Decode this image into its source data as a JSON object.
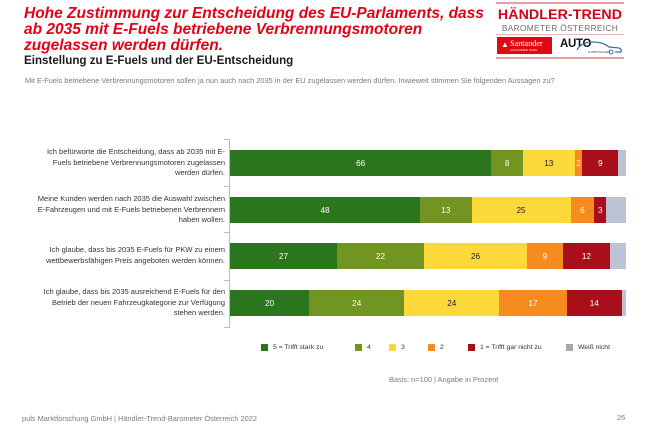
{
  "header": {
    "title": "Hohe Zustimmung zur Entscheidung des EU-Parlaments, dass ab 2035 mit E-Fuels betriebene Verbrennungsmotoren zugelassen werden dürfen.",
    "subtitle": "Einstellung zu E-Fuels und der EU-Entscheidung",
    "intro": "Mit E-Fuels betriebene Verbrennungsmotoren sollen ja nun auch nach 2035 in der EU zugelassen werden dürfen. Inwieweit stimmen Sie folgenden Aussagen zu?"
  },
  "logo": {
    "brand": "HÄNDLER-TREND",
    "sub": "BAROMETER ÖSTERREICH",
    "partner1": "Santander",
    "partner1_sub": "CONSUMER BANK",
    "partner2": "AUTO",
    "partner2_sub": "& WIRTSCHAFT"
  },
  "chart_data": {
    "type": "bar",
    "orientation": "horizontal",
    "stacked": true,
    "title": "Einstellung zu E-Fuels und der EU-Entscheidung",
    "xlabel": "",
    "ylabel": "",
    "xlim": [
      0,
      100
    ],
    "unit": "Prozent",
    "legend_position": "bottom",
    "categories": [
      "Ich befürworte die Entscheidung, dass ab 2035 mit E-Fuels betriebene Verbrennungsmotoren zugelassen werden dürfen.",
      "Meine Kunden werden nach 2035 die Auswahl zwischen E-Fahrzeugen und mit E-Fuels betriebenen Verbrennern haben wollen.",
      "Ich glaube, dass bis 2035 E-Fuels für PKW zu einem wettbewerbsfähigen Preis angeboten werden können.",
      "Ich glaube, dass bis 2035 ausreichend E-Fuels für den Betrieb der neuen Fahrzeugkategorie zur Verfügung stehen werden."
    ],
    "series": [
      {
        "name": "5 = Trifft stark zu",
        "color": "#2b761d",
        "legend_color": "#2b761d",
        "label_dark": false,
        "values": [
          66,
          48,
          27,
          20
        ],
        "labels_shown": true
      },
      {
        "name": "4",
        "color": "#729420",
        "legend_color": "#729420",
        "label_dark": false,
        "values": [
          8,
          13,
          22,
          24
        ],
        "labels_shown": true
      },
      {
        "name": "3",
        "color": "#fdd83a",
        "legend_color": "#fdd83a",
        "label_dark": true,
        "values": [
          13,
          25,
          26,
          24
        ],
        "labels_shown": true
      },
      {
        "name": "2",
        "color": "#f68c1f",
        "legend_color": "#f68c1f",
        "label_dark": false,
        "values": [
          2,
          6,
          9,
          17
        ],
        "labels_shown": true
      },
      {
        "name": "1 = Trifft gar nicht zu",
        "color": "#a80f1b",
        "legend_color": "#a80f1b",
        "label_dark": false,
        "values": [
          9,
          3,
          12,
          14
        ],
        "labels_shown": true
      },
      {
        "name": "Weiß nicht",
        "color": "#bcc3d4",
        "legend_color": "#a8a8a8",
        "label_dark": true,
        "values": [
          2,
          5,
          4,
          1
        ],
        "labels_shown": false
      }
    ]
  },
  "notes": {
    "basis": "Basis: n=100 | Angabe in Prozent"
  },
  "footer": {
    "source": "puls Marktforschung GmbH | Händler-Trend-Barometer Österreich 2022",
    "page": "26"
  }
}
